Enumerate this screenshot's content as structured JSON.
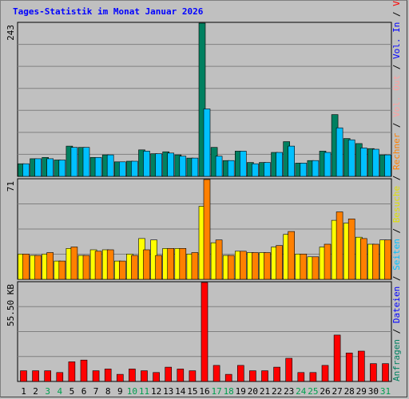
{
  "chart_data": {
    "type": "bar",
    "title": "Tages-Statistik im Monat Januar 2026",
    "categories": [
      "1",
      "2",
      "3",
      "4",
      "5",
      "6",
      "7",
      "8",
      "9",
      "10",
      "11",
      "12",
      "13",
      "14",
      "15",
      "16",
      "17",
      "18",
      "19",
      "20",
      "21",
      "22",
      "23",
      "24",
      "25",
      "26",
      "27",
      "28",
      "29",
      "30",
      "31"
    ],
    "weekend_days": [
      "3",
      "4",
      "10",
      "11",
      "17",
      "18",
      "24",
      "25",
      "31"
    ],
    "panels": [
      {
        "id": "top",
        "ymax_label": "243",
        "ymax": 243,
        "series": [
          {
            "name": "Anfragen",
            "color": "#008060",
            "values": [
              20,
              28,
              30,
              26,
              48,
              46,
              30,
              34,
              23,
              24,
              42,
              36,
              39,
              34,
              29,
              243,
              46,
              25,
              40,
              22,
              22,
              38,
              55,
              21,
              25,
              40,
              98,
              60,
              52,
              44,
              34
            ]
          },
          {
            "name": "Dateien",
            "color": "#00c0ff",
            "values": [
              20,
              28,
              28,
              26,
              46,
              46,
              30,
              34,
              23,
              24,
              40,
              36,
              37,
              32,
              29,
              107,
              32,
              25,
              40,
              20,
              22,
              38,
              48,
              21,
              25,
              38,
              77,
              58,
              45,
              43,
              34
            ]
          }
        ]
      },
      {
        "id": "middle",
        "ymax_label": "71",
        "ymax": 71,
        "series": [
          {
            "name": "Besuche",
            "color": "#ffff00",
            "values": [
              18,
              17,
              18,
              13,
              22,
              17,
              21,
              21,
              13,
              18,
              29,
              28,
              22,
              22,
              18,
              52,
              26,
              17,
              20,
              19,
              19,
              23,
              32,
              18,
              16,
              23,
              42,
              40,
              30,
              25,
              28
            ]
          },
          {
            "name": "Rechner",
            "color": "#ff8000",
            "values": [
              18,
              17,
              19,
              13,
              23,
              17,
              20,
              21,
              13,
              17,
              21,
              17,
              22,
              22,
              19,
              71,
              28,
              17,
              20,
              19,
              19,
              24,
              34,
              18,
              16,
              25,
              48,
              43,
              29,
              25,
              28
            ]
          }
        ]
      },
      {
        "id": "bottom",
        "ymax_label": "55.50 KB",
        "ymax": 55.5,
        "series": [
          {
            "name": "Volumen",
            "color": "#ff0000",
            "values": [
              6,
              6,
              6,
              5,
              11,
              12,
              6,
              7,
              4,
              7,
              6,
              5,
              8,
              7,
              6,
              55.5,
              9,
              4,
              9,
              6,
              6,
              8,
              13,
              5,
              5,
              9,
              26,
              16,
              17,
              10,
              10
            ]
          }
        ]
      }
    ],
    "right_legend": [
      {
        "text": "Anfragen",
        "color": "#008060"
      },
      {
        "text": "Dateien",
        "color": "#0000ff"
      },
      {
        "text": "Seiten",
        "color": "#00c0ff"
      },
      {
        "text": "Besuche",
        "color": "#e0e000"
      },
      {
        "text": "Rechner",
        "color": "#ff8000"
      },
      {
        "text": "Vol. Out",
        "color": "#ffa0a0"
      },
      {
        "text": "Vol. In",
        "color": "#0000ff"
      },
      {
        "text": "Volumen",
        "color": "#ff0000"
      }
    ],
    "colors": {
      "background": "#c0c0c0",
      "plot_background": "#c0c0c0",
      "grid": "#808080",
      "weekday_label": "#000000",
      "weekend_label": "#00a050",
      "title": "#0000ff",
      "legend_separator": "#000000"
    }
  }
}
